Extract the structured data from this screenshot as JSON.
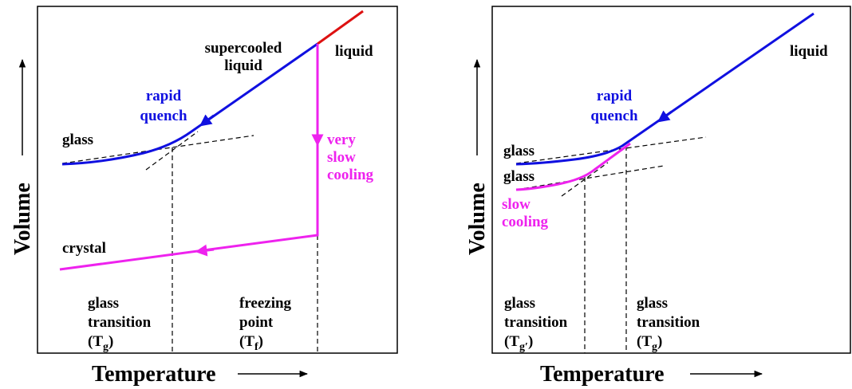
{
  "panels": [
    {
      "y_label": "Volume",
      "x_label": "Temperature",
      "labels": {
        "supercooled": [
          "supercooled",
          "liquid"
        ],
        "liquid": [
          "liquid"
        ],
        "rapid": [
          "rapid",
          "quench"
        ],
        "glass": [
          "glass"
        ],
        "slow": [
          "very",
          "slow",
          "cooling"
        ],
        "crystal": [
          "crystal"
        ]
      },
      "transitions": [
        {
          "lines": [
            "glass",
            "transition"
          ],
          "symbol": {
            "open": "(T",
            "sub": "g",
            "close": ")"
          }
        },
        {
          "lines": [
            "freezing",
            "point"
          ],
          "symbol": {
            "open": "(T",
            "sub": "f",
            "close": ")"
          }
        }
      ]
    },
    {
      "y_label": "Volume",
      "x_label": "Temperature",
      "labels": {
        "liquid": [
          "liquid"
        ],
        "rapid": [
          "rapid",
          "quench"
        ],
        "glass_fast": [
          "glass"
        ],
        "glass_slow": [
          "glass"
        ],
        "slow": [
          "slow",
          "cooling"
        ]
      },
      "transitions": [
        {
          "lines": [
            "glass",
            "transition"
          ],
          "symbol": {
            "open": "(T",
            "sub": "g′",
            "close": ")"
          }
        },
        {
          "lines": [
            "glass",
            "transition"
          ],
          "symbol": {
            "open": "(T",
            "sub": "g",
            "close": ")"
          }
        }
      ]
    }
  ]
}
